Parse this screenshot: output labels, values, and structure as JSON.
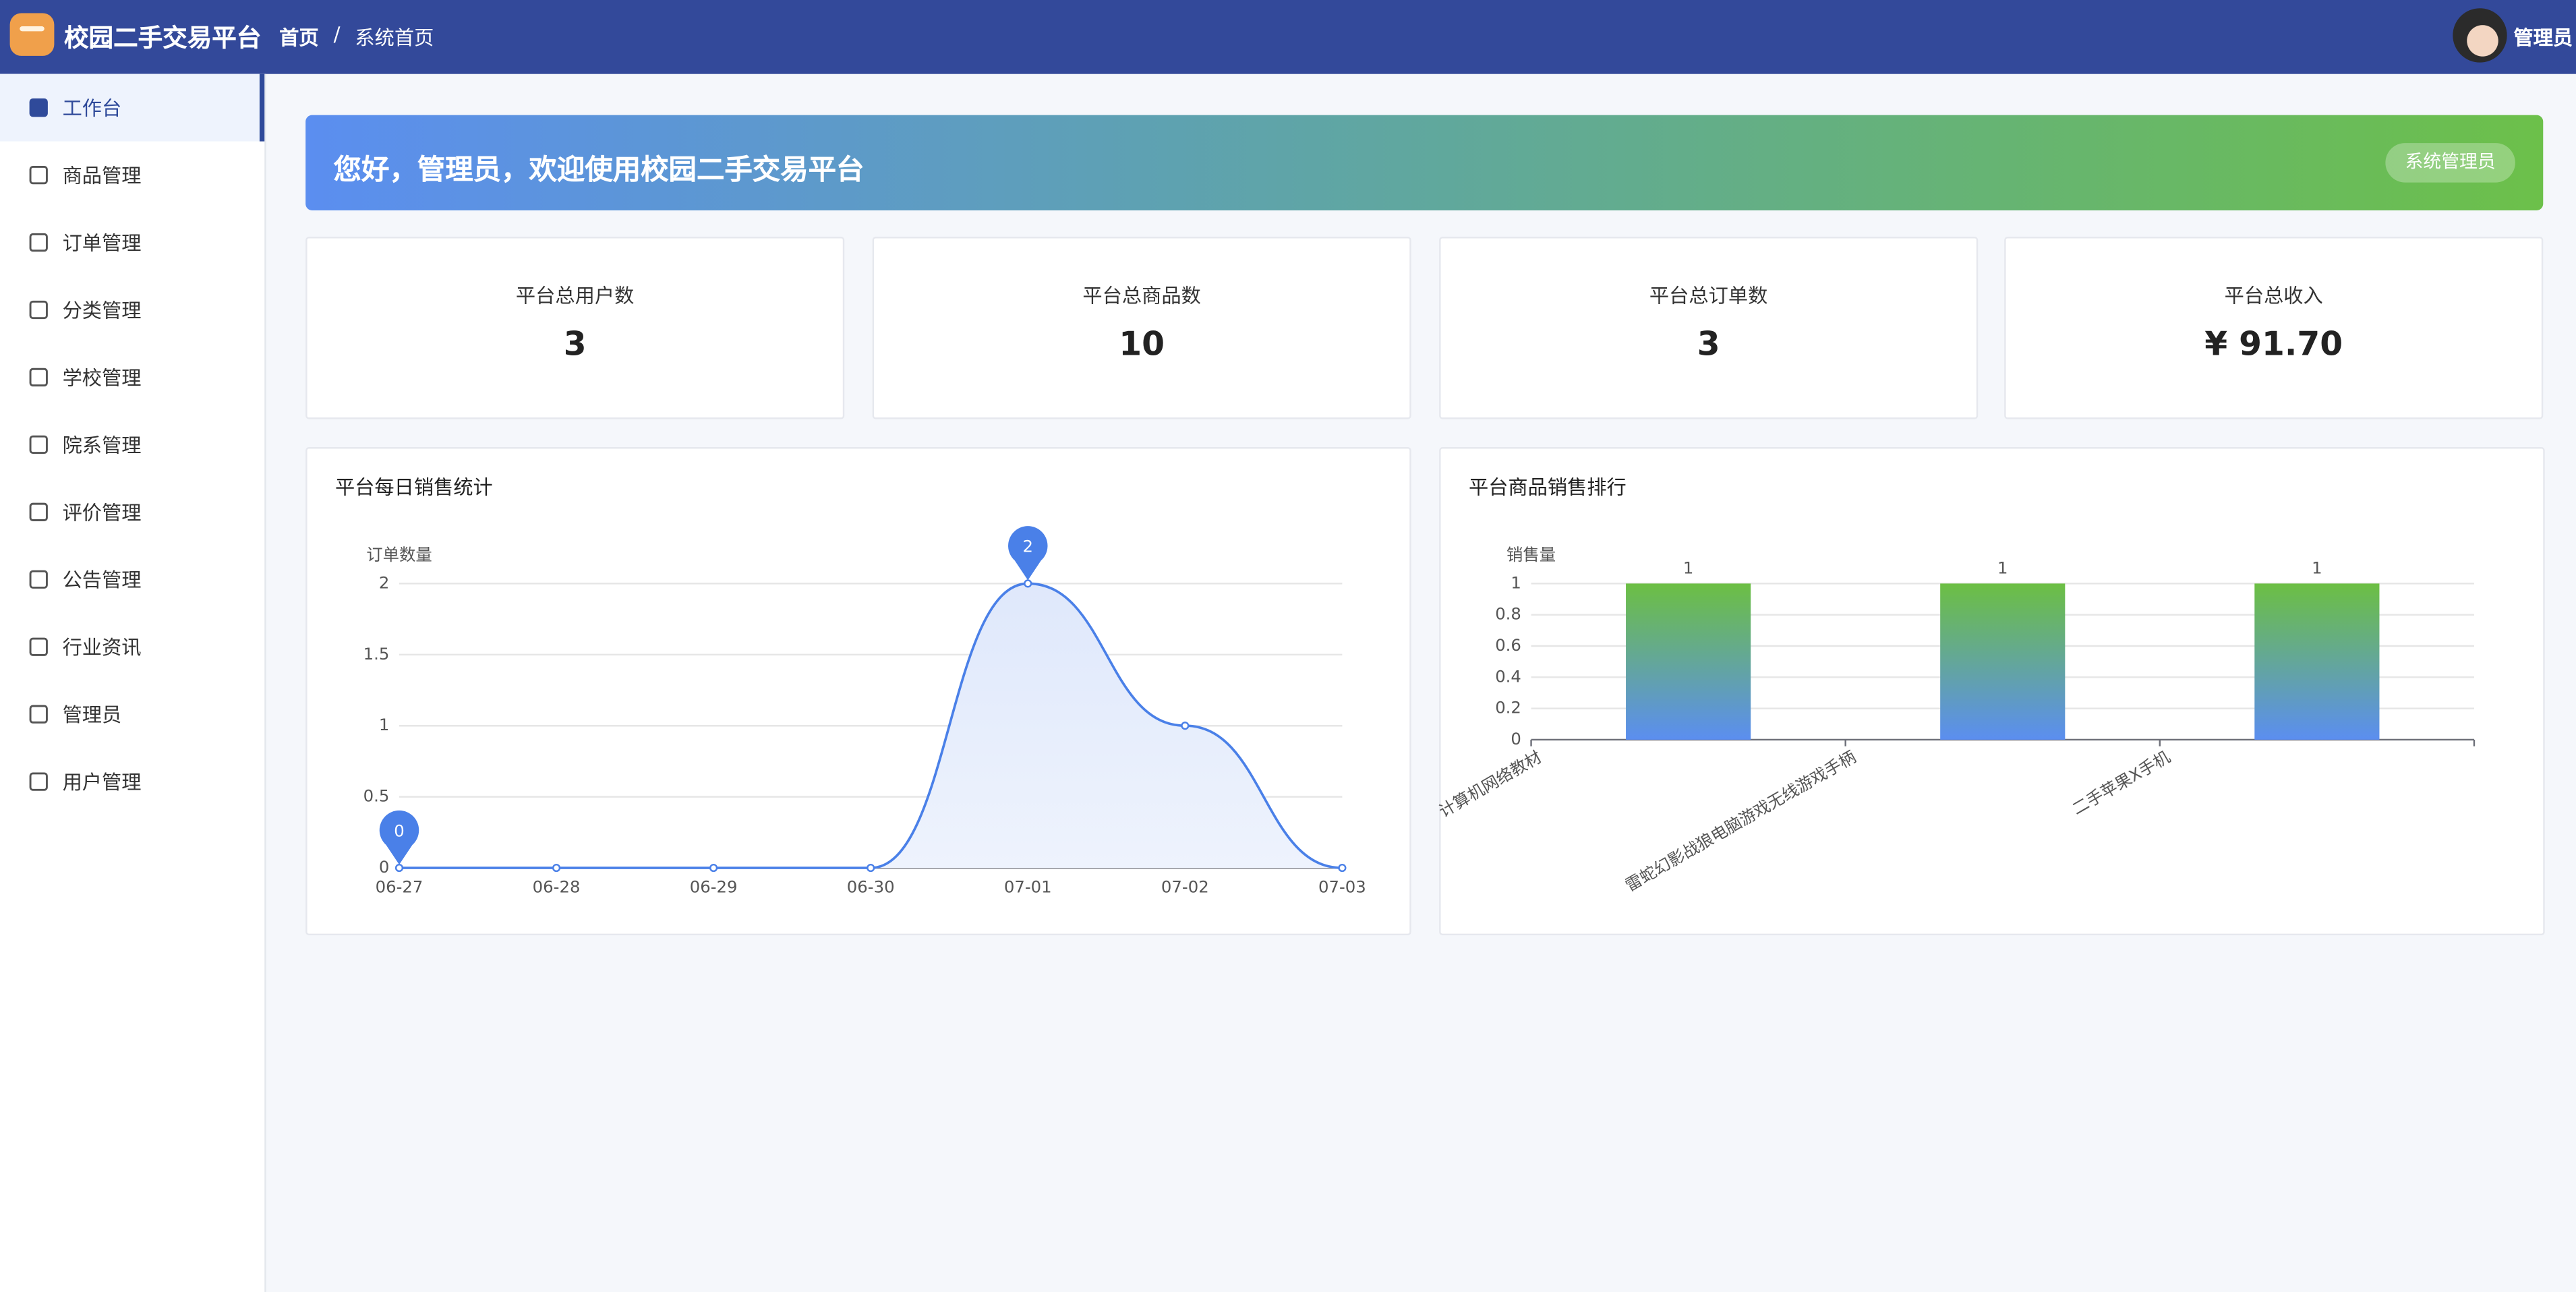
{
  "header": {
    "title": "校园二手交易平台",
    "breadcrumb": [
      "首页",
      "系统首页"
    ],
    "separator": "/",
    "user": "管理员"
  },
  "sidebar": {
    "items": [
      "工作台",
      "商品管理",
      "订单管理",
      "分类管理",
      "学校管理",
      "院系管理",
      "评价管理",
      "公告管理",
      "行业资讯",
      "管理员",
      "用户管理"
    ]
  },
  "banner": {
    "greeting": "您好，管理员，欢迎使用校园二手交易平台",
    "role": "系统管理员"
  },
  "stats": [
    {
      "label": "平台总用户数",
      "value": 3
    },
    {
      "label": "平台总商品数",
      "value": 10
    },
    {
      "label": "平台总订单数",
      "value": 3
    },
    {
      "label": "平台总收入",
      "value": "¥ 91.70"
    }
  ],
  "chart_data": [
    {
      "type": "line",
      "title": "平台每日销售统计",
      "y_label": "订单数量",
      "categories": [
        "06-27",
        "06-28",
        "06-29",
        "06-30",
        "07-01",
        "07-02",
        "07-03"
      ],
      "values": [
        0,
        0,
        0,
        0,
        2,
        1,
        0
      ],
      "color": "#4a80e8",
      "ylim": [
        0,
        2
      ],
      "yticks": [
        0,
        0.5,
        1,
        1.5,
        2
      ],
      "grid": true
    },
    {
      "type": "bar",
      "title": "平台商品销售排行",
      "y_label": "销售量",
      "categories": [
        "计算机网络教材",
        "雷蛇幻影战狼电脑游戏无线游戏手柄",
        "二手苹果X手机"
      ],
      "values": [
        1,
        1,
        1
      ],
      "color": [
        "#6cbf43",
        "#5b8ef0"
      ],
      "ylim": [
        0,
        1
      ],
      "yticks": [
        0,
        0.2,
        0.4,
        0.6,
        0.8,
        1
      ],
      "grid": true
    }
  ]
}
